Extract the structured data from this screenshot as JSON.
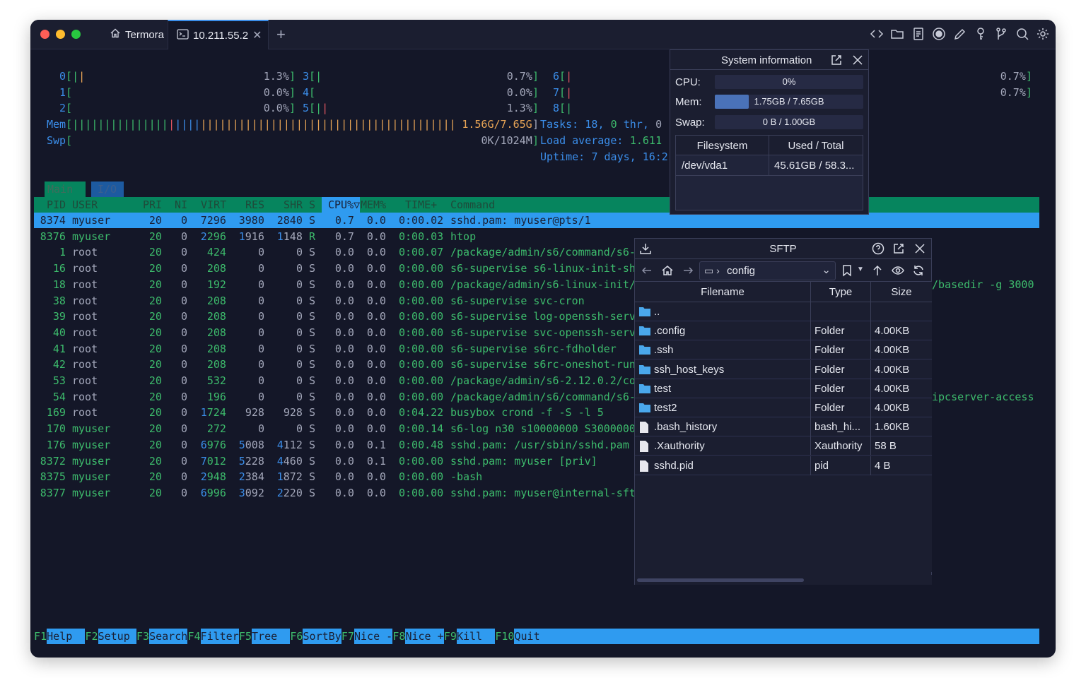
{
  "window": {
    "colors": {
      "close": "#fe5f57",
      "minimize": "#febc2e",
      "zoom": "#28c840"
    }
  },
  "tabs": [
    {
      "label": "Termora",
      "icon": "home-icon"
    },
    {
      "label": "10.211.55.2",
      "icon": "terminal-icon"
    }
  ],
  "toolbar_icons": [
    "code-icon",
    "folder-icon",
    "notes-icon",
    "record-icon",
    "pencil-icon",
    "key-icon",
    "git-branch-icon",
    "search-icon",
    "gear-icon"
  ],
  "htop": {
    "cpus": [
      {
        "id": "0",
        "bars": [
          [
            "g",
            "|"
          ],
          [
            "o",
            "|"
          ]
        ],
        "pct": "1.3%"
      },
      {
        "id": "1",
        "bars": [],
        "pct": "0.0%"
      },
      {
        "id": "2",
        "bars": [],
        "pct": "0.0%"
      },
      {
        "id": "3",
        "bars": [
          [
            "g",
            "|"
          ]
        ],
        "pct": "0.7%"
      },
      {
        "id": "4",
        "bars": [],
        "pct": "0.0%"
      },
      {
        "id": "5",
        "bars": [
          [
            "g",
            "|"
          ],
          [
            "r",
            "|"
          ]
        ],
        "pct": "1.3%"
      },
      {
        "id": "6",
        "bars": [
          [
            "r",
            "|"
          ]
        ],
        "pct": "0.7%"
      },
      {
        "id": "7",
        "bars": [
          [
            "r",
            "|"
          ]
        ],
        "pct": "0.7%"
      },
      {
        "id": "8",
        "bars": [
          [
            "g",
            "|"
          ]
        ],
        "pct": ""
      }
    ],
    "mem": {
      "label": "Mem",
      "bars": [
        [
          "g",
          "|||||||||||||||"
        ],
        [
          "r",
          "|"
        ],
        [
          "b",
          "||||"
        ],
        [
          "o",
          "||||||||||||||||||||||||||||||||||||||||"
        ]
      ],
      "value": "1.56G/7.65G"
    },
    "swap": {
      "label": "Swp",
      "value": "0K/1024M"
    },
    "tasks": {
      "label": "Tasks: ",
      "count": "18",
      "sep": ", ",
      "thr": "0",
      "thr_label": " thr, ",
      "running": "0"
    },
    "load": {
      "label": "Load average: ",
      "v1": "1.61",
      "v2": "1"
    },
    "uptime": {
      "label": "Uptime: ",
      "value": "7 days, 16:2"
    },
    "tabs": [
      "Main",
      "I/O"
    ],
    "columns": [
      "PID",
      "USER",
      "PRI",
      "NI",
      "VIRT",
      "RES",
      "SHR",
      "S",
      "CPU%▽",
      "MEM%",
      "TIME+",
      "Command"
    ],
    "rows": [
      [
        "8374",
        "myuser",
        "20",
        "0",
        "7296",
        "3980",
        "2840",
        "S",
        "0.7",
        "0.0",
        "0:00.02",
        "sshd.pam: myuser@pts/1"
      ],
      [
        "8376",
        "myuser",
        "20",
        "0",
        "2296",
        "1916",
        "1148",
        "R",
        "0.7",
        "0.0",
        "0:00.03",
        "htop"
      ],
      [
        "1",
        "root",
        "20",
        "0",
        "424",
        "0",
        "0",
        "S",
        "0.0",
        "0.0",
        "0:00.07",
        "/package/admin/s6/command/s6-"
      ],
      [
        "16",
        "root",
        "20",
        "0",
        "208",
        "0",
        "0",
        "S",
        "0.0",
        "0.0",
        "0:00.00",
        "s6-supervise s6-linux-init-sh"
      ],
      [
        "18",
        "root",
        "20",
        "0",
        "192",
        "0",
        "0",
        "S",
        "0.0",
        "0.0",
        "0:00.00",
        "/package/admin/s6-linux-init/"
      ],
      [
        "38",
        "root",
        "20",
        "0",
        "208",
        "0",
        "0",
        "S",
        "0.0",
        "0.0",
        "0:00.00",
        "s6-supervise svc-cron"
      ],
      [
        "39",
        "root",
        "20",
        "0",
        "208",
        "0",
        "0",
        "S",
        "0.0",
        "0.0",
        "0:00.00",
        "s6-supervise log-openssh-serv"
      ],
      [
        "40",
        "root",
        "20",
        "0",
        "208",
        "0",
        "0",
        "S",
        "0.0",
        "0.0",
        "0:00.00",
        "s6-supervise svc-openssh-serv"
      ],
      [
        "41",
        "root",
        "20",
        "0",
        "208",
        "0",
        "0",
        "S",
        "0.0",
        "0.0",
        "0:00.00",
        "s6-supervise s6rc-fdholder"
      ],
      [
        "42",
        "root",
        "20",
        "0",
        "208",
        "0",
        "0",
        "S",
        "0.0",
        "0.0",
        "0:00.00",
        "s6-supervise s6rc-oneshot-run"
      ],
      [
        "53",
        "root",
        "20",
        "0",
        "532",
        "0",
        "0",
        "S",
        "0.0",
        "0.0",
        "0:00.00",
        "/package/admin/s6-2.12.0.2/co"
      ],
      [
        "54",
        "root",
        "20",
        "0",
        "196",
        "0",
        "0",
        "S",
        "0.0",
        "0.0",
        "0:00.00",
        "/package/admin/s6/command/s6-"
      ],
      [
        "169",
        "root",
        "20",
        "0",
        "1724",
        "928",
        "928",
        "S",
        "0.0",
        "0.0",
        "0:04.22",
        "busybox crond -f -S -l 5"
      ],
      [
        "170",
        "myuser",
        "20",
        "0",
        "272",
        "0",
        "0",
        "S",
        "0.0",
        "0.0",
        "0:00.14",
        "s6-log n30 s10000000 S3000000"
      ],
      [
        "176",
        "myuser",
        "20",
        "0",
        "6976",
        "5008",
        "4112",
        "S",
        "0.0",
        "0.1",
        "0:00.48",
        "sshd.pam: /usr/sbin/sshd.pam"
      ],
      [
        "8372",
        "myuser",
        "20",
        "0",
        "7012",
        "5228",
        "4460",
        "S",
        "0.0",
        "0.1",
        "0:00.00",
        "sshd.pam: myuser [priv]"
      ],
      [
        "8375",
        "myuser",
        "20",
        "0",
        "2948",
        "2384",
        "1872",
        "S",
        "0.0",
        "0.0",
        "0:00.00",
        "-bash"
      ],
      [
        "8377",
        "myuser",
        "20",
        "0",
        "6996",
        "3092",
        "2220",
        "S",
        "0.0",
        "0.0",
        "0:00.00",
        "sshd.pam: myuser@internal-sft"
      ]
    ],
    "command_tails": {
      "row18": "/basedir -g 3000",
      "row54": "ipcserver-access"
    },
    "fkeys": [
      [
        "F1",
        "Help  "
      ],
      [
        "F2",
        "Setup "
      ],
      [
        "F3",
        "Search"
      ],
      [
        "F4",
        "Filter"
      ],
      [
        "F5",
        "Tree  "
      ],
      [
        "F6",
        "SortBy"
      ],
      [
        "F7",
        "Nice -"
      ],
      [
        "F8",
        "Nice +"
      ],
      [
        "F9",
        "Kill  "
      ],
      [
        "F10",
        "Quit"
      ]
    ]
  },
  "sysinfo": {
    "title": "System information",
    "cpu_label": "CPU:",
    "cpu_value": "0%",
    "cpu_fraction": 0.0,
    "mem_label": "Mem:",
    "mem_value": "1.75GB / 7.65GB",
    "mem_fraction": 0.229,
    "swap_label": "Swap:",
    "swap_value": "0 B / 1.00GB",
    "swap_fraction": 0.0,
    "fs_headers": [
      "Filesystem",
      "Used / Total"
    ],
    "fs_rows": [
      [
        "/dev/vda1",
        "45.61GB / 58.3..."
      ]
    ],
    "mem_color": "#4a72b8"
  },
  "sftp": {
    "title": "SFTP",
    "path": "config",
    "headers": [
      "Filename",
      "Type",
      "Size"
    ],
    "files": [
      {
        "name": "..",
        "type": "",
        "size": "",
        "kind": "folder"
      },
      {
        "name": ".config",
        "type": "Folder",
        "size": "4.00KB",
        "kind": "folder"
      },
      {
        "name": ".ssh",
        "type": "Folder",
        "size": "4.00KB",
        "kind": "folder"
      },
      {
        "name": "ssh_host_keys",
        "type": "Folder",
        "size": "4.00KB",
        "kind": "folder"
      },
      {
        "name": "test",
        "type": "Folder",
        "size": "4.00KB",
        "kind": "folder"
      },
      {
        "name": "test2",
        "type": "Folder",
        "size": "4.00KB",
        "kind": "folder"
      },
      {
        "name": ".bash_history",
        "type": "bash_hi...",
        "size": "1.60KB",
        "kind": "file"
      },
      {
        "name": ".Xauthority",
        "type": "Xauthority",
        "size": "58 B",
        "kind": "file"
      },
      {
        "name": "sshd.pid",
        "type": "pid",
        "size": "4 B",
        "kind": "file"
      }
    ]
  }
}
